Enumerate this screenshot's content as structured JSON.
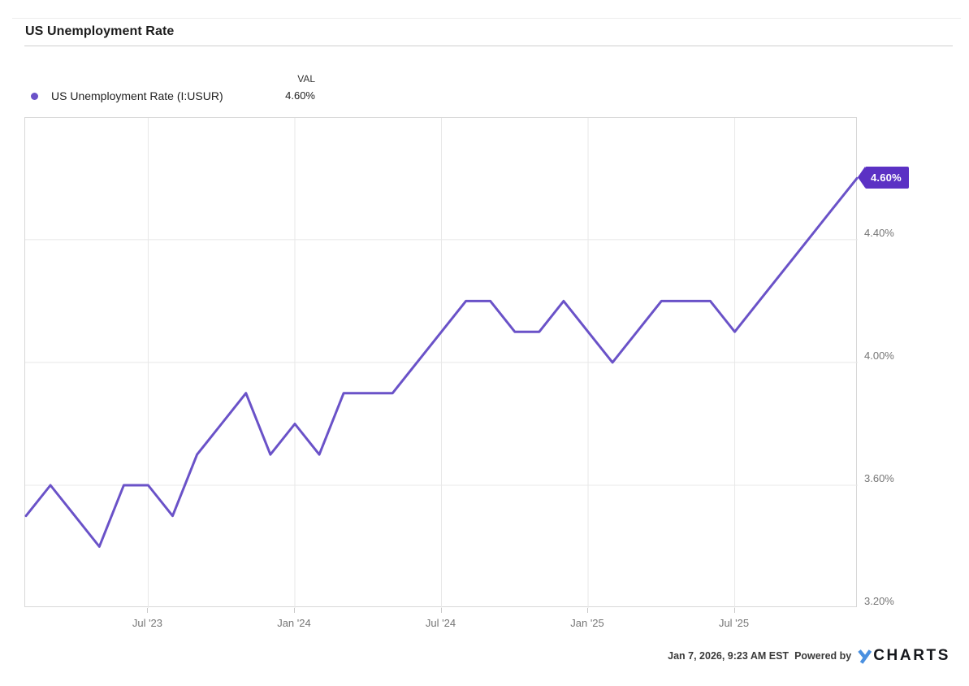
{
  "header": {
    "title": "US Unemployment Rate"
  },
  "legend": {
    "val_header": "VAL",
    "series": {
      "label": "US Unemployment Rate (I:USUR)",
      "value": "4.60%"
    }
  },
  "badge": {
    "label": "4.60%"
  },
  "footer": {
    "timestamp": "Jan 7, 2026, 9:23 AM EST",
    "powered_by": "Powered by",
    "logo_y": "Y",
    "logo_rest": "CHARTS"
  },
  "colors": {
    "line": "#6a52c8",
    "badge": "#5b31c4",
    "legend_dot": "#6a52c8",
    "grid": "#e8e8e8",
    "border": "#d8d8d8",
    "axis_text": "#757575",
    "logo_blue": "#4a90e0"
  },
  "chart_data": {
    "type": "line",
    "title": "US Unemployment Rate",
    "x": [
      "Feb '23",
      "Mar '23",
      "Apr '23",
      "May '23",
      "Jun '23",
      "Jul '23",
      "Aug '23",
      "Sep '23",
      "Oct '23",
      "Nov '23",
      "Dec '23",
      "Jan '24",
      "Feb '24",
      "Mar '24",
      "Apr '24",
      "May '24",
      "Jun '24",
      "Jul '24",
      "Aug '24",
      "Sep '24",
      "Oct '24",
      "Nov '24",
      "Dec '24",
      "Jan '25",
      "Feb '25",
      "Mar '25",
      "Apr '25",
      "May '25",
      "Jun '25",
      "Jul '25",
      "Aug '25",
      "Sep '25",
      "Oct '25",
      "Nov '25",
      "Dec '25"
    ],
    "series": [
      {
        "name": "US Unemployment Rate (I:USUR)",
        "values": [
          3.5,
          3.6,
          3.5,
          3.4,
          3.6,
          3.6,
          3.5,
          3.7,
          3.8,
          3.9,
          3.7,
          3.8,
          3.7,
          3.9,
          3.9,
          3.9,
          4.0,
          4.1,
          4.2,
          4.2,
          4.1,
          4.1,
          4.2,
          4.1,
          4.0,
          4.1,
          4.2,
          4.2,
          4.2,
          4.1,
          4.2,
          4.3,
          4.4,
          4.5,
          4.6
        ]
      }
    ],
    "x_axis_ticks": [
      {
        "label": "Jul '23",
        "index": 5
      },
      {
        "label": "Jan '24",
        "index": 11
      },
      {
        "label": "Jul '24",
        "index": 17
      },
      {
        "label": "Jan '25",
        "index": 23
      },
      {
        "label": "Jul '25",
        "index": 29
      }
    ],
    "y_axis_ticks": [
      {
        "label": "4.40%",
        "value": 4.4
      },
      {
        "label": "4.00%",
        "value": 4.0
      },
      {
        "label": "3.60%",
        "value": 3.6
      },
      {
        "label": "3.20%",
        "value": 3.2
      }
    ],
    "ylim": [
      3.2,
      4.797
    ],
    "grid": true,
    "legend_position": "top-left",
    "last_point_label": "4.60%",
    "unit": "percent"
  }
}
